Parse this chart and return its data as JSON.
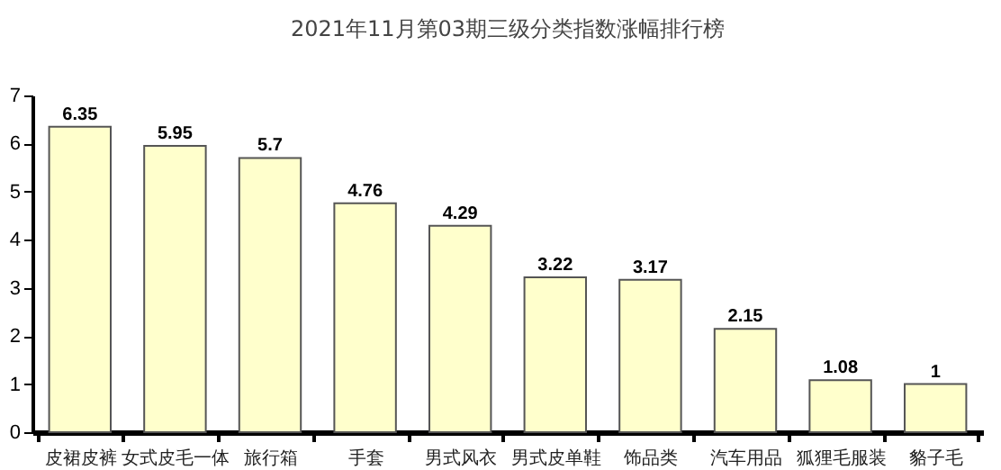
{
  "chart_data": {
    "type": "bar",
    "title": "2021年11月第03期三级分类指数涨幅排行榜",
    "categories": [
      "皮裙皮裤",
      "女式皮毛一体",
      "旅行箱",
      "手套",
      "男式风衣",
      "男式皮单鞋",
      "饰品类",
      "汽车用品",
      "狐狸毛服装",
      "貉子毛"
    ],
    "values": [
      6.35,
      5.95,
      5.7,
      4.76,
      4.29,
      3.22,
      3.17,
      2.15,
      1.08,
      1
    ],
    "color": "#ffffcc",
    "ylim": [
      0,
      7
    ],
    "yticks": [
      0,
      1,
      2,
      3,
      4,
      5,
      6,
      7
    ],
    "data_labels": true,
    "grid": false
  }
}
